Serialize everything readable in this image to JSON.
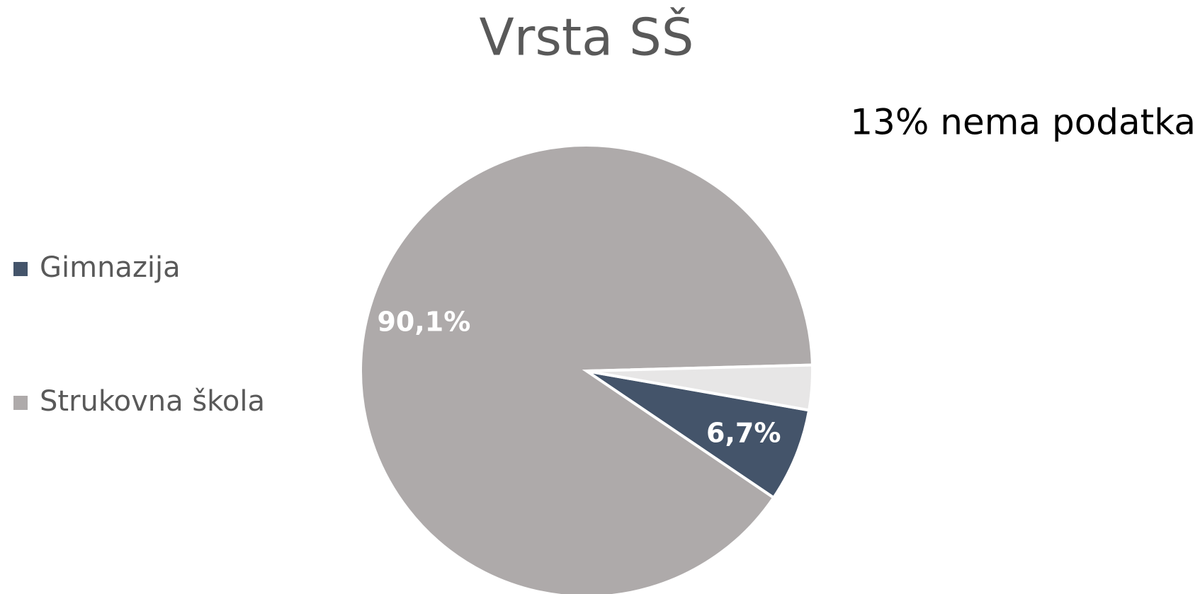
{
  "chart_data": {
    "type": "pie",
    "title": "Vrsta SŠ",
    "annotation": "13% nema podatka",
    "categories": [
      "Gimnazija",
      "Strukovna škola",
      null
    ],
    "values": [
      6.7,
      90.1,
      3.2
    ],
    "value_labels": [
      "6,7%",
      "90,1%",
      null
    ],
    "colors": [
      "#44546a",
      "#aeaaaa",
      "#e7e6e6"
    ],
    "legend": "left"
  }
}
